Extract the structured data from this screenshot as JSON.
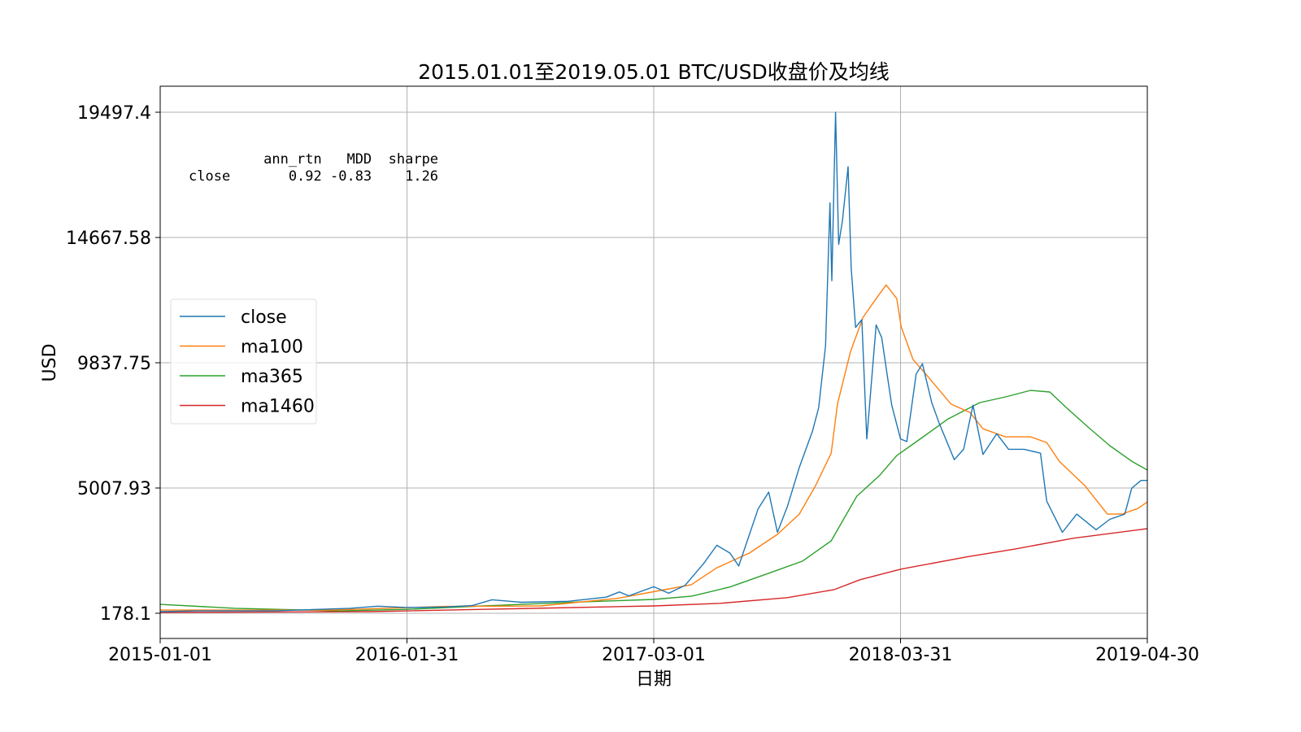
{
  "chart_data": {
    "type": "line",
    "title": "2015.01.01至2019.05.01 BTC/USD收盘价及均线",
    "xlabel": "日期",
    "ylabel": "USD",
    "xlim": [
      "2015-01-01",
      "2019-04-30"
    ],
    "ylim": [
      178.1,
      19497.4
    ],
    "x_ticks": [
      "2015-01-01",
      "2016-01-31",
      "2017-03-01",
      "2018-03-31",
      "2019-04-30"
    ],
    "y_ticks": [
      178.1,
      5007.93,
      9837.75,
      14667.58,
      19497.4
    ],
    "y_tick_labels": [
      "178.1",
      "5007.93",
      "9837.75",
      "14667.58",
      "19497.4"
    ],
    "grid": true,
    "legend_position": "center-left",
    "stats_table": {
      "header": [
        "",
        "ann_rtn",
        "MDD",
        "sharpe"
      ],
      "row": [
        "close",
        "0.92",
        "-0.83",
        "1.26"
      ]
    },
    "series": [
      {
        "name": "close",
        "color": "#1f77b4",
        "points": [
          [
            "2015-01-01",
            241
          ],
          [
            "2015-03-01",
            270
          ],
          [
            "2015-07-01",
            270
          ],
          [
            "2015-11-01",
            370
          ],
          [
            "2015-12-15",
            450
          ],
          [
            "2016-01-31",
            400
          ],
          [
            "2016-04-01",
            420
          ],
          [
            "2016-05-15",
            480
          ],
          [
            "2016-06-15",
            700
          ],
          [
            "2016-08-01",
            600
          ],
          [
            "2016-10-15",
            640
          ],
          [
            "2016-12-15",
            800
          ],
          [
            "2017-01-05",
            1000
          ],
          [
            "2017-01-20",
            850
          ],
          [
            "2017-03-01",
            1200
          ],
          [
            "2017-03-25",
            950
          ],
          [
            "2017-04-20",
            1250
          ],
          [
            "2017-05-20",
            2100
          ],
          [
            "2017-06-10",
            2800
          ],
          [
            "2017-07-01",
            2500
          ],
          [
            "2017-07-15",
            2000
          ],
          [
            "2017-08-15",
            4200
          ],
          [
            "2017-09-01",
            4850
          ],
          [
            "2017-09-15",
            3300
          ],
          [
            "2017-10-01",
            4300
          ],
          [
            "2017-10-20",
            5800
          ],
          [
            "2017-11-10",
            7200
          ],
          [
            "2017-11-20",
            8100
          ],
          [
            "2017-12-01",
            10500
          ],
          [
            "2017-12-08",
            16000
          ],
          [
            "2017-12-11",
            13000
          ],
          [
            "2017-12-17",
            19497
          ],
          [
            "2017-12-22",
            14400
          ],
          [
            "2017-12-28",
            15300
          ],
          [
            "2018-01-06",
            17400
          ],
          [
            "2018-01-11",
            13500
          ],
          [
            "2018-01-18",
            11200
          ],
          [
            "2018-01-28",
            11500
          ],
          [
            "2018-02-05",
            6900
          ],
          [
            "2018-02-20",
            11300
          ],
          [
            "2018-03-01",
            10800
          ],
          [
            "2018-03-10",
            9300
          ],
          [
            "2018-03-17",
            8200
          ],
          [
            "2018-03-31",
            6900
          ],
          [
            "2018-04-10",
            6800
          ],
          [
            "2018-04-25",
            9400
          ],
          [
            "2018-05-05",
            9800
          ],
          [
            "2018-05-20",
            8300
          ],
          [
            "2018-06-01",
            7500
          ],
          [
            "2018-06-25",
            6100
          ],
          [
            "2018-07-10",
            6500
          ],
          [
            "2018-07-25",
            8200
          ],
          [
            "2018-08-10",
            6300
          ],
          [
            "2018-09-01",
            7100
          ],
          [
            "2018-09-20",
            6500
          ],
          [
            "2018-10-15",
            6500
          ],
          [
            "2018-11-10",
            6350
          ],
          [
            "2018-11-20",
            4500
          ],
          [
            "2018-12-15",
            3300
          ],
          [
            "2019-01-07",
            4000
          ],
          [
            "2019-02-07",
            3400
          ],
          [
            "2019-03-01",
            3800
          ],
          [
            "2019-03-25",
            4000
          ],
          [
            "2019-04-05",
            5000
          ],
          [
            "2019-04-20",
            5300
          ],
          [
            "2019-04-30",
            5300
          ]
        ]
      },
      {
        "name": "ma100",
        "color": "#ff7f0e",
        "points": [
          [
            "2015-01-01",
            300
          ],
          [
            "2015-10-01",
            300
          ],
          [
            "2016-04-01",
            440
          ],
          [
            "2016-09-01",
            460
          ],
          [
            "2017-01-01",
            750
          ],
          [
            "2017-03-01",
            1010
          ],
          [
            "2017-04-30",
            1280
          ],
          [
            "2017-06-10",
            1930
          ],
          [
            "2017-08-01",
            2500
          ],
          [
            "2017-09-15",
            3220
          ],
          [
            "2017-10-20",
            4000
          ],
          [
            "2017-11-15",
            5100
          ],
          [
            "2017-12-10",
            6350
          ],
          [
            "2017-12-20",
            8240
          ],
          [
            "2018-01-10",
            10270
          ],
          [
            "2018-01-30",
            11590
          ],
          [
            "2018-02-20",
            12310
          ],
          [
            "2018-03-08",
            12840
          ],
          [
            "2018-03-25",
            12310
          ],
          [
            "2018-04-01",
            11220
          ],
          [
            "2018-04-20",
            9960
          ],
          [
            "2018-05-15",
            9270
          ],
          [
            "2018-06-20",
            8240
          ],
          [
            "2018-07-20",
            7920
          ],
          [
            "2018-08-10",
            7290
          ],
          [
            "2018-09-15",
            6980
          ],
          [
            "2018-10-25",
            6980
          ],
          [
            "2018-11-20",
            6760
          ],
          [
            "2018-12-10",
            6040
          ],
          [
            "2019-01-20",
            5100
          ],
          [
            "2019-02-25",
            4000
          ],
          [
            "2019-03-20",
            4000
          ],
          [
            "2019-04-15",
            4220
          ],
          [
            "2019-04-30",
            4470
          ]
        ]
      },
      {
        "name": "ma365",
        "color": "#2ca02c",
        "points": [
          [
            "2015-01-01",
            520
          ],
          [
            "2015-05-01",
            370
          ],
          [
            "2015-10-15",
            270
          ],
          [
            "2016-01-31",
            330
          ],
          [
            "2016-06-01",
            460
          ],
          [
            "2016-11-01",
            610
          ],
          [
            "2017-03-01",
            710
          ],
          [
            "2017-05-01",
            840
          ],
          [
            "2017-07-01",
            1190
          ],
          [
            "2017-09-01",
            1720
          ],
          [
            "2017-10-25",
            2190
          ],
          [
            "2017-12-10",
            2970
          ],
          [
            "2018-01-20",
            4690
          ],
          [
            "2018-02-25",
            5480
          ],
          [
            "2018-03-25",
            6260
          ],
          [
            "2018-05-01",
            6890
          ],
          [
            "2018-06-15",
            7670
          ],
          [
            "2018-08-05",
            8300
          ],
          [
            "2018-09-15",
            8520
          ],
          [
            "2018-10-25",
            8770
          ],
          [
            "2018-11-25",
            8710
          ],
          [
            "2018-12-20",
            8140
          ],
          [
            "2019-01-25",
            7360
          ],
          [
            "2019-03-01",
            6640
          ],
          [
            "2019-04-05",
            6040
          ],
          [
            "2019-04-30",
            5700
          ]
        ]
      },
      {
        "name": "ma1460",
        "color": "#d62728",
        "points": [
          [
            "2015-01-01",
            210
          ],
          [
            "2015-12-01",
            240
          ],
          [
            "2016-06-01",
            330
          ],
          [
            "2017-03-01",
            460
          ],
          [
            "2017-06-15",
            560
          ],
          [
            "2017-10-01",
            780
          ],
          [
            "2017-12-15",
            1090
          ],
          [
            "2018-01-25",
            1470
          ],
          [
            "2018-04-01",
            1880
          ],
          [
            "2018-07-15",
            2350
          ],
          [
            "2018-10-01",
            2660
          ],
          [
            "2019-01-01",
            3070
          ],
          [
            "2019-04-30",
            3440
          ]
        ]
      }
    ]
  }
}
